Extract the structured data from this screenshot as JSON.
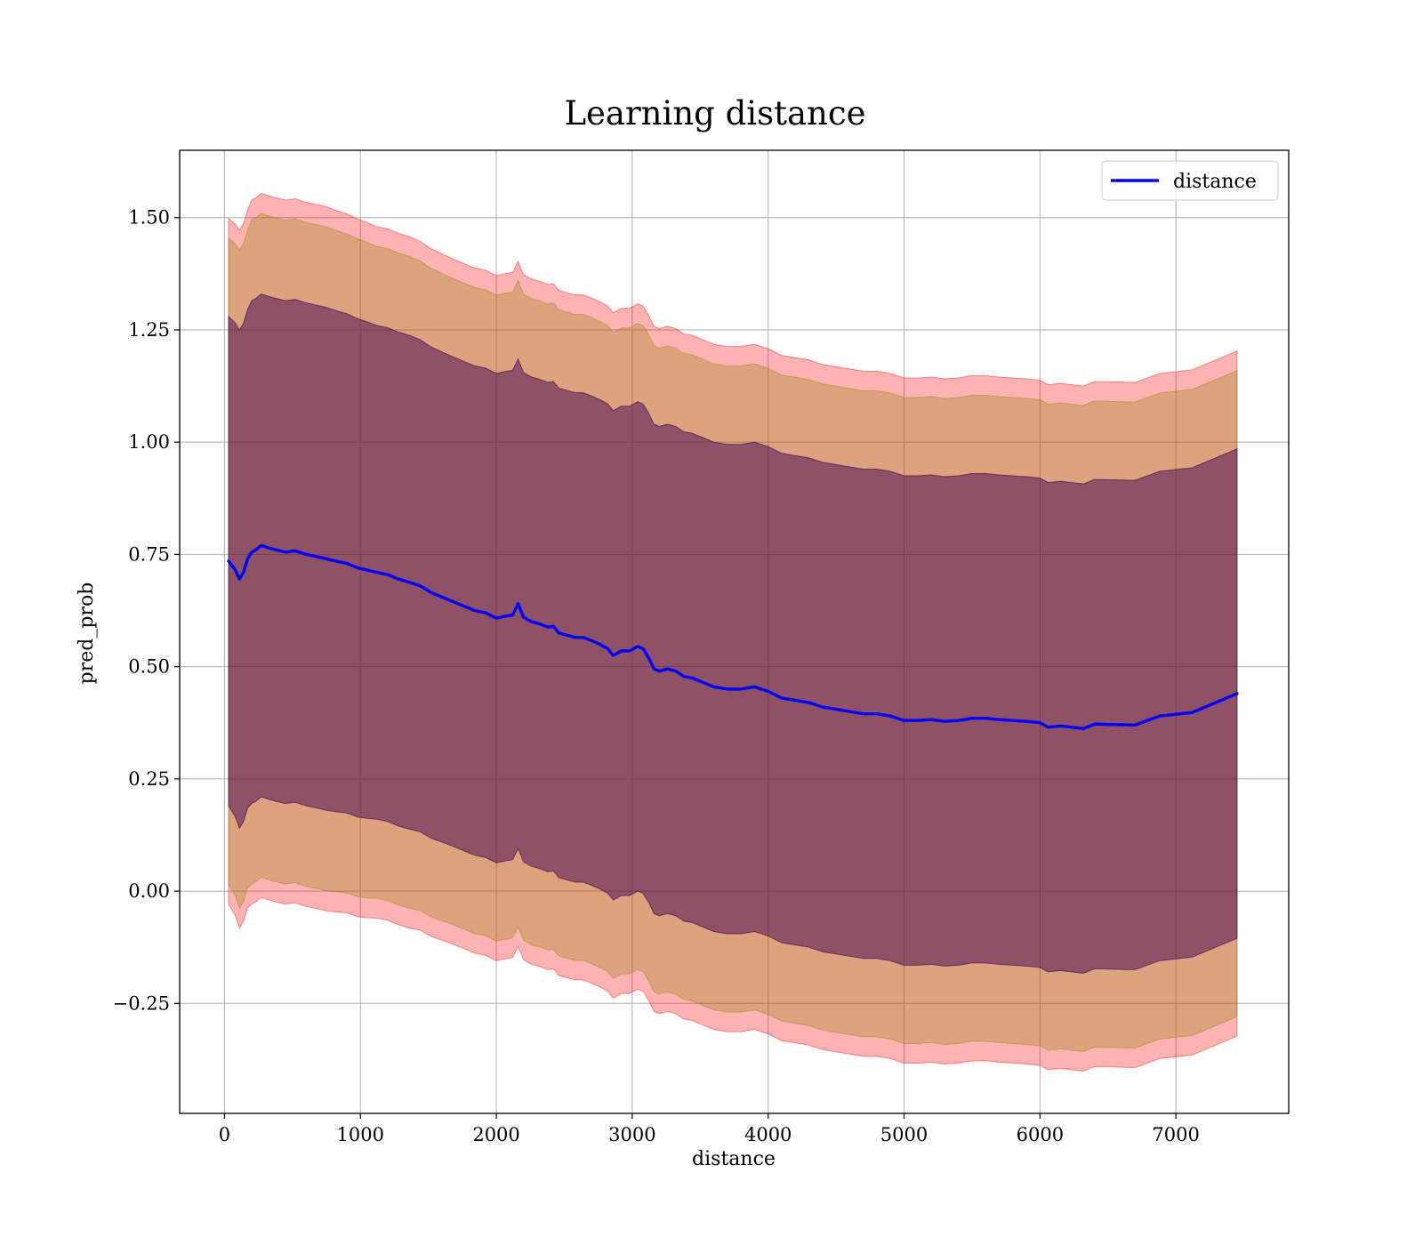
{
  "chart_data": {
    "type": "line",
    "title": "Learning distance",
    "xlabel": "distance",
    "ylabel": "pred_prob",
    "xlim": [
      -330,
      7830
    ],
    "ylim": [
      -0.495,
      1.65
    ],
    "xticks": [
      0,
      1000,
      2000,
      3000,
      4000,
      5000,
      6000,
      7000
    ],
    "xtick_labels": [
      "0",
      "1000",
      "2000",
      "3000",
      "4000",
      "5000",
      "6000",
      "7000"
    ],
    "yticks": [
      -0.25,
      0.0,
      0.25,
      0.5,
      0.75,
      1.0,
      1.25,
      1.5
    ],
    "ytick_labels": [
      "−0.25",
      "0.00",
      "0.25",
      "0.50",
      "0.75",
      "1.00",
      "1.25",
      "1.50"
    ],
    "grid": true,
    "legend": {
      "position": "top-right",
      "entries": [
        "distance"
      ]
    },
    "colors": {
      "line": "#0000ff",
      "band_outer": "#ff0000",
      "band_middle": "#8b8000",
      "band_inner": "#400050"
    },
    "band_opacities": {
      "outer": 0.3,
      "middle": 0.3,
      "inner": 0.5
    },
    "series": [
      {
        "name": "distance",
        "x": [
          30,
          80,
          110,
          140,
          170,
          200,
          230,
          270,
          320,
          380,
          450,
          520,
          600,
          680,
          750,
          820,
          900,
          980,
          1050,
          1120,
          1200,
          1280,
          1360,
          1440,
          1520,
          1600,
          1680,
          1760,
          1840,
          1920,
          2000,
          2060,
          2120,
          2160,
          2200,
          2260,
          2320,
          2380,
          2420,
          2460,
          2520,
          2580,
          2640,
          2700,
          2760,
          2820,
          2860,
          2920,
          2980,
          3040,
          3080,
          3120,
          3160,
          3200,
          3260,
          3320,
          3380,
          3440,
          3520,
          3600,
          3700,
          3800,
          3900,
          4000,
          4100,
          4200,
          4300,
          4400,
          4500,
          4600,
          4700,
          4800,
          4900,
          5000,
          5100,
          5200,
          5300,
          5400,
          5500,
          5600,
          5700,
          5800,
          5900,
          6000,
          6060,
          6150,
          6320,
          6400,
          6700,
          6880,
          7120,
          7450
        ],
        "mean": [
          0.735,
          0.715,
          0.695,
          0.71,
          0.74,
          0.755,
          0.76,
          0.77,
          0.765,
          0.76,
          0.755,
          0.758,
          0.75,
          0.745,
          0.74,
          0.735,
          0.73,
          0.72,
          0.715,
          0.71,
          0.705,
          0.695,
          0.688,
          0.68,
          0.665,
          0.655,
          0.645,
          0.635,
          0.625,
          0.62,
          0.608,
          0.612,
          0.615,
          0.64,
          0.61,
          0.6,
          0.595,
          0.588,
          0.59,
          0.575,
          0.57,
          0.565,
          0.565,
          0.558,
          0.55,
          0.54,
          0.525,
          0.535,
          0.535,
          0.545,
          0.54,
          0.52,
          0.495,
          0.49,
          0.495,
          0.49,
          0.478,
          0.475,
          0.465,
          0.455,
          0.45,
          0.45,
          0.455,
          0.445,
          0.43,
          0.425,
          0.42,
          0.41,
          0.405,
          0.4,
          0.395,
          0.395,
          0.39,
          0.38,
          0.38,
          0.382,
          0.378,
          0.38,
          0.385,
          0.385,
          0.382,
          0.38,
          0.378,
          0.375,
          0.365,
          0.368,
          0.362,
          0.372,
          0.37,
          0.39,
          0.398,
          0.44
        ],
        "std": [
          0.545,
          0.55,
          0.555,
          0.555,
          0.555,
          0.56,
          0.56,
          0.56,
          0.56,
          0.56,
          0.56,
          0.56,
          0.56,
          0.56,
          0.56,
          0.558,
          0.556,
          0.555,
          0.553,
          0.55,
          0.55,
          0.55,
          0.55,
          0.548,
          0.547,
          0.546,
          0.545,
          0.545,
          0.545,
          0.545,
          0.545,
          0.545,
          0.545,
          0.545,
          0.545,
          0.545,
          0.545,
          0.545,
          0.545,
          0.545,
          0.545,
          0.545,
          0.545,
          0.545,
          0.545,
          0.545,
          0.545,
          0.545,
          0.545,
          0.545,
          0.545,
          0.545,
          0.545,
          0.545,
          0.545,
          0.545,
          0.545,
          0.545,
          0.545,
          0.545,
          0.545,
          0.545,
          0.545,
          0.545,
          0.545,
          0.545,
          0.545,
          0.545,
          0.545,
          0.545,
          0.545,
          0.545,
          0.545,
          0.545,
          0.545,
          0.545,
          0.545,
          0.545,
          0.545,
          0.545,
          0.545,
          0.545,
          0.545,
          0.545,
          0.545,
          0.545,
          0.545,
          0.545,
          0.545,
          0.545,
          0.545,
          0.545
        ],
        "band_multipliers": {
          "outer": 1.4,
          "middle": 1.32,
          "inner": 1.0
        }
      }
    ]
  }
}
